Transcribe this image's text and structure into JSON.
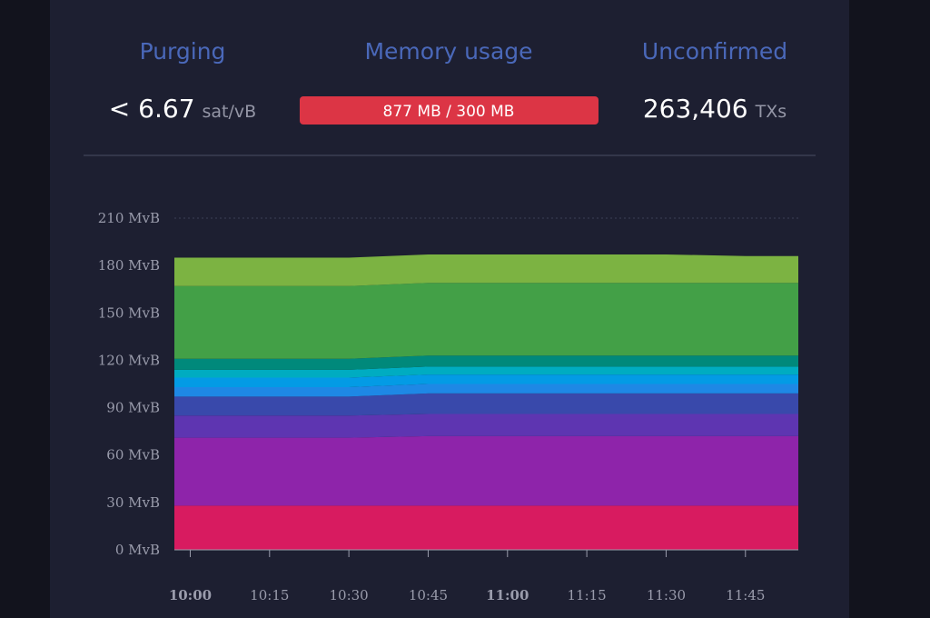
{
  "stats": [
    {
      "title": "Purging",
      "value": "< 6.67",
      "unit": "sat/vB"
    },
    {
      "title": "Memory usage",
      "value": "877 MB / 300 MB"
    },
    {
      "title": "Unconfirmed",
      "value": "263,406",
      "unit": "TXs"
    }
  ],
  "chart_data": {
    "type": "stacked-area",
    "x": [
      597,
      600,
      615,
      630,
      645,
      660,
      675,
      690,
      705,
      715
    ],
    "xlim": [
      597,
      715
    ],
    "xticks": [
      {
        "value": 600,
        "label": "10:00"
      },
      {
        "value": 615,
        "label": "10:15"
      },
      {
        "value": 630,
        "label": "10:30"
      },
      {
        "value": 645,
        "label": "10:45"
      },
      {
        "value": 660,
        "label": "11:00"
      },
      {
        "value": 675,
        "label": "11:15"
      },
      {
        "value": 690,
        "label": "11:30"
      },
      {
        "value": 705,
        "label": "11:45"
      }
    ],
    "ylim": [
      0,
      210
    ],
    "yticks": [
      {
        "value": 0,
        "label": "0 MvB"
      },
      {
        "value": 30,
        "label": "30 MvB"
      },
      {
        "value": 60,
        "label": "60 MvB"
      },
      {
        "value": 90,
        "label": "90 MvB"
      },
      {
        "value": 120,
        "label": "120 MvB"
      },
      {
        "value": 150,
        "label": "150 MvB"
      },
      {
        "value": 180,
        "label": "180 MvB"
      },
      {
        "value": 210,
        "label": "210 MvB"
      }
    ],
    "grid": true,
    "series": [
      {
        "color": "#d81b60",
        "values": [
          28,
          28,
          28,
          28,
          28,
          28,
          28,
          28,
          28,
          28
        ]
      },
      {
        "color": "#8e24aa",
        "values": [
          43,
          43,
          43,
          43,
          44,
          44,
          44,
          44,
          44,
          44
        ]
      },
      {
        "color": "#5e35b1",
        "values": [
          14,
          14,
          14,
          14,
          14,
          14,
          14,
          14,
          14,
          14
        ]
      },
      {
        "color": "#3949ab",
        "values": [
          12,
          12,
          12,
          12,
          13,
          13,
          13,
          13,
          13,
          13
        ]
      },
      {
        "color": "#1e88e5",
        "values": [
          6,
          6,
          6,
          6,
          6,
          6,
          6,
          6,
          6,
          6
        ]
      },
      {
        "color": "#039be5",
        "values": [
          6,
          6,
          6,
          6,
          6,
          6,
          6,
          6,
          6,
          6
        ]
      },
      {
        "color": "#00acc1",
        "values": [
          5,
          5,
          5,
          5,
          5,
          5,
          5,
          5,
          5,
          5
        ]
      },
      {
        "color": "#00897b",
        "values": [
          7,
          7,
          7,
          7,
          7,
          7,
          7,
          7,
          7,
          7
        ]
      },
      {
        "color": "#43a047",
        "values": [
          46,
          46,
          46,
          46,
          46,
          46,
          46,
          46,
          46,
          46
        ]
      },
      {
        "color": "#7cb342",
        "values": [
          18,
          18,
          18,
          18,
          18,
          18,
          18,
          18,
          17,
          17
        ]
      }
    ]
  }
}
